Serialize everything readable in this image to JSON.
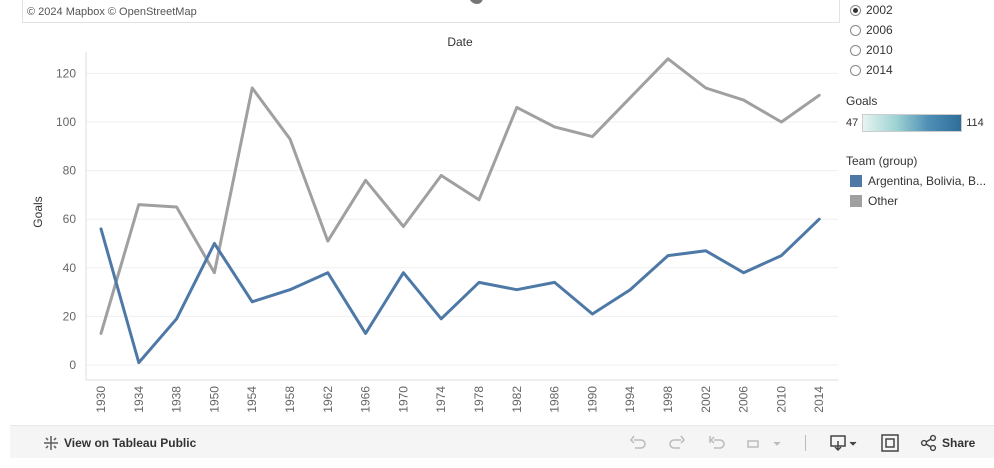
{
  "map": {
    "credit": "© 2024 Mapbox  © OpenStreetMap"
  },
  "year_filter": {
    "options": [
      {
        "label": "2002",
        "selected": true
      },
      {
        "label": "2006",
        "selected": false
      },
      {
        "label": "2010",
        "selected": false
      },
      {
        "label": "2014",
        "selected": false
      }
    ]
  },
  "color_legend": {
    "title": "Goals",
    "min_label": "47",
    "max_label": "114"
  },
  "team_legend": {
    "title": "Team (group)",
    "items": [
      {
        "label": "Argentina, Bolivia, B...",
        "color": "#4e79a7"
      },
      {
        "label": "Other",
        "color": "#a0a0a0"
      }
    ]
  },
  "chart_data": {
    "type": "line",
    "title": "Date",
    "xlabel": "",
    "ylabel": "Goals",
    "ylim": [
      0,
      130
    ],
    "yticks": [
      0,
      20,
      40,
      60,
      80,
      100,
      120
    ],
    "categories": [
      "1930",
      "1934",
      "1938",
      "1950",
      "1954",
      "1958",
      "1962",
      "1966",
      "1970",
      "1974",
      "1978",
      "1982",
      "1986",
      "1990",
      "1994",
      "1998",
      "2002",
      "2006",
      "2010",
      "2014"
    ],
    "series": [
      {
        "name": "Argentina, Bolivia, B...",
        "color": "#4e79a7",
        "values": [
          56,
          1,
          19,
          50,
          26,
          31,
          38,
          13,
          38,
          19,
          34,
          31,
          34,
          21,
          31,
          45,
          47,
          38,
          45,
          60
        ]
      },
      {
        "name": "Other",
        "color": "#a0a0a0",
        "values": [
          13,
          66,
          65,
          38,
          114,
          93,
          51,
          76,
          57,
          78,
          68,
          106,
          98,
          94,
          110,
          126,
          114,
          109,
          100,
          111
        ]
      }
    ],
    "grid": true,
    "legend": "right"
  },
  "footer": {
    "link_label": "View on Tableau Public",
    "share_label": "Share"
  },
  "icons": {
    "undo": "undo-icon",
    "redo": "redo-icon",
    "revert": "revert-icon",
    "refresh": "refresh-icon",
    "download": "download-icon",
    "fullscreen": "fullscreen-icon",
    "share": "share-icon",
    "tableau": "tableau-logo-icon"
  }
}
